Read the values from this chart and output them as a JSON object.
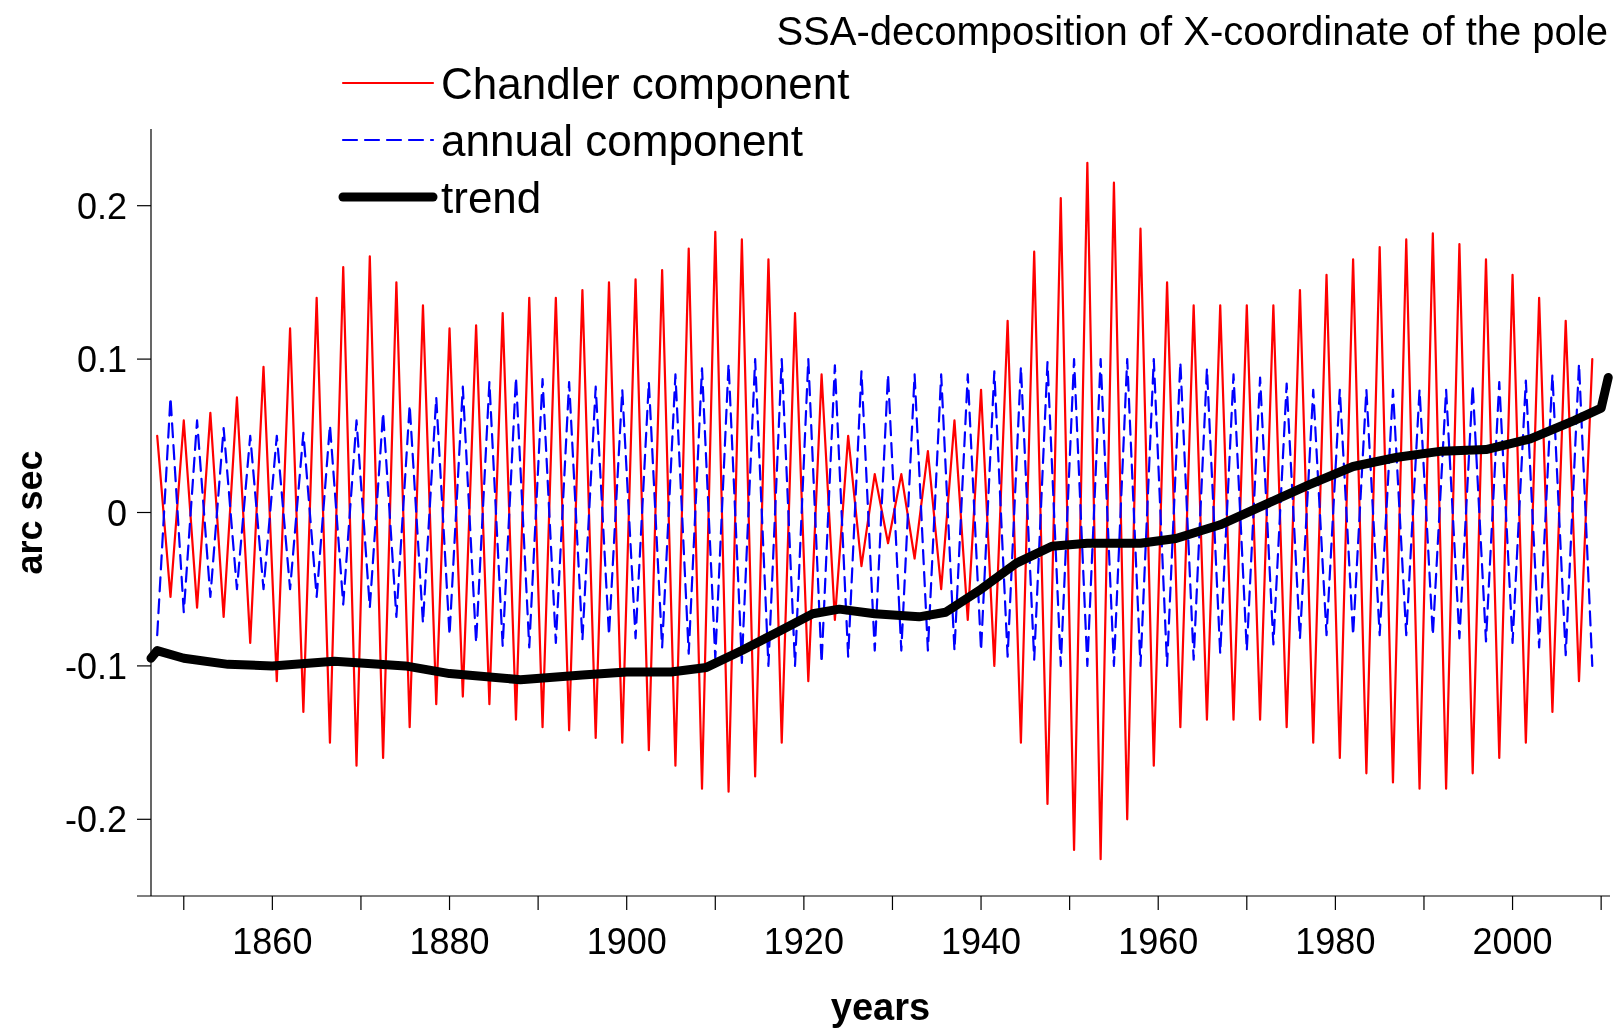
{
  "chart_data": {
    "type": "line",
    "title": "SSA-decomposition of X-coordinate of the pole",
    "xlabel": "years",
    "ylabel": "arc sec",
    "xlim": [
      1846.3,
      2011
    ],
    "ylim": [
      -0.25,
      0.25
    ],
    "xticks": [
      {
        "value": 1850,
        "label": null
      },
      1860,
      {
        "value": 1870,
        "label": null
      },
      1880,
      {
        "value": 1890,
        "label": null
      },
      1900,
      {
        "value": 1910,
        "label": null
      },
      1920,
      {
        "value": 1930,
        "label": null
      },
      1940,
      {
        "value": 1950,
        "label": null
      },
      1960,
      {
        "value": 1970,
        "label": null
      },
      1980,
      {
        "value": 1990,
        "label": null
      },
      2000,
      {
        "value": 2010,
        "label": null
      }
    ],
    "yticks": [
      -0.2,
      -0.1,
      0,
      0.1,
      0.2
    ],
    "grid": false,
    "legend": "top left",
    "x": [
      1847,
      1848.5,
      1850,
      1851.5,
      1853,
      1854.5,
      1856,
      1857.5,
      1859,
      1860.5,
      1862,
      1863.5,
      1865,
      1866.5,
      1868,
      1869.5,
      1871,
      1872.5,
      1874,
      1875.5,
      1877,
      1878.5,
      1880,
      1881.5,
      1883,
      1884.5,
      1886,
      1887.5,
      1889,
      1890.5,
      1892,
      1893.5,
      1895,
      1896.5,
      1898,
      1899.5,
      1901,
      1902.5,
      1904,
      1905.5,
      1907,
      1908.5,
      1910,
      1911.5,
      1913,
      1914.5,
      1916,
      1917.5,
      1919,
      1920.5,
      1922,
      1923.5,
      1925,
      1926.5,
      1928,
      1929.5,
      1931,
      1932.5,
      1934,
      1935.5,
      1937,
      1938.5,
      1940,
      1941.5,
      1943,
      1944.5,
      1946,
      1947.5,
      1949,
      1950.5,
      1952,
      1953.5,
      1955,
      1956.5,
      1958,
      1959.5,
      1961,
      1962.5,
      1964,
      1965.5,
      1967,
      1968.5,
      1970,
      1971.5,
      1973,
      1974.5,
      1976,
      1977.5,
      1979,
      1980.5,
      1982,
      1983.5,
      1985,
      1986.5,
      1988,
      1989.5,
      1991,
      1992.5,
      1994,
      1995.5,
      1997,
      1998.5,
      2000,
      2001.5,
      2003,
      2004.5,
      2006,
      2007.5,
      2009
    ],
    "series": [
      {
        "name": "Chandler component",
        "color": "#ff0000",
        "line_style": "solid",
        "values": [
          0.05,
          -0.055,
          0.06,
          -0.062,
          0.065,
          -0.068,
          0.075,
          -0.085,
          0.095,
          -0.11,
          0.12,
          -0.13,
          0.14,
          -0.15,
          0.16,
          -0.165,
          0.167,
          -0.16,
          0.15,
          -0.14,
          0.135,
          -0.125,
          0.12,
          -0.12,
          0.122,
          -0.125,
          0.13,
          -0.135,
          0.14,
          -0.14,
          0.14,
          -0.142,
          0.145,
          -0.147,
          0.15,
          -0.15,
          0.152,
          -0.155,
          0.158,
          -0.165,
          0.172,
          -0.18,
          0.183,
          -0.182,
          0.178,
          -0.172,
          0.165,
          -0.15,
          0.13,
          -0.11,
          0.09,
          -0.07,
          0.05,
          -0.035,
          0.025,
          -0.02,
          0.025,
          -0.03,
          0.04,
          -0.05,
          0.06,
          -0.07,
          0.08,
          -0.1,
          0.125,
          -0.15,
          0.17,
          -0.19,
          0.205,
          -0.22,
          0.228,
          -0.226,
          0.215,
          -0.2,
          0.185,
          -0.165,
          0.15,
          -0.14,
          0.135,
          -0.135,
          0.135,
          -0.135,
          0.135,
          -0.135,
          0.135,
          -0.14,
          0.145,
          -0.15,
          0.155,
          -0.16,
          0.165,
          -0.17,
          0.173,
          -0.176,
          0.178,
          -0.18,
          0.182,
          -0.18,
          0.175,
          -0.17,
          0.165,
          -0.16,
          0.155,
          -0.15,
          0.14,
          -0.13,
          0.125,
          -0.11,
          0.1
        ]
      },
      {
        "name": "annual component",
        "color": "#0000ff",
        "line_style": "dashed",
        "values": [
          -0.08,
          0.075,
          -0.065,
          0.06,
          -0.055,
          0.055,
          -0.05,
          0.05,
          -0.05,
          0.05,
          -0.05,
          0.052,
          -0.055,
          0.057,
          -0.06,
          0.06,
          -0.062,
          0.065,
          -0.068,
          0.07,
          -0.072,
          0.075,
          -0.08,
          0.082,
          -0.085,
          0.085,
          -0.087,
          0.088,
          -0.088,
          0.087,
          -0.085,
          0.085,
          -0.083,
          0.082,
          -0.08,
          0.08,
          -0.082,
          0.085,
          -0.088,
          0.09,
          -0.092,
          0.094,
          -0.095,
          0.097,
          -0.098,
          0.1,
          -0.1,
          0.1,
          -0.1,
          0.1,
          -0.098,
          0.096,
          -0.094,
          0.092,
          -0.09,
          0.09,
          -0.09,
          0.09,
          -0.09,
          0.09,
          -0.09,
          0.09,
          -0.09,
          0.092,
          -0.094,
          0.095,
          -0.096,
          0.098,
          -0.1,
          0.1,
          -0.1,
          0.1,
          -0.1,
          0.1,
          -0.1,
          0.1,
          -0.1,
          0.098,
          -0.096,
          0.094,
          -0.092,
          0.09,
          -0.09,
          0.088,
          -0.086,
          0.084,
          -0.082,
          0.08,
          -0.08,
          0.08,
          -0.08,
          0.08,
          -0.08,
          0.08,
          -0.08,
          0.08,
          -0.08,
          0.08,
          -0.082,
          0.083,
          -0.084,
          0.085,
          -0.085,
          0.086,
          -0.088,
          0.09,
          -0.093,
          0.097,
          -0.1
        ]
      },
      {
        "name": "trend",
        "color": "#000000",
        "line_style": "solid",
        "x": [
          1846.3,
          1847,
          1850,
          1855,
          1860,
          1867,
          1875,
          1880,
          1888,
          1895,
          1900,
          1905,
          1909,
          1913,
          1917,
          1921,
          1924,
          1928,
          1933,
          1936,
          1940,
          1944,
          1948,
          1952,
          1958,
          1962,
          1967,
          1972,
          1977,
          1982,
          1987,
          1992,
          1997,
          2002,
          2007,
          2010,
          2010.8
        ],
        "values": [
          -0.095,
          -0.09,
          -0.095,
          -0.099,
          -0.1,
          -0.097,
          -0.1,
          -0.105,
          -0.109,
          -0.106,
          -0.104,
          -0.104,
          -0.101,
          -0.09,
          -0.078,
          -0.066,
          -0.063,
          -0.066,
          -0.068,
          -0.065,
          -0.05,
          -0.033,
          -0.022,
          -0.02,
          -0.02,
          -0.017,
          -0.008,
          0.005,
          0.018,
          0.03,
          0.036,
          0.04,
          0.041,
          0.048,
          0.06,
          0.068,
          0.088
        ]
      }
    ]
  }
}
